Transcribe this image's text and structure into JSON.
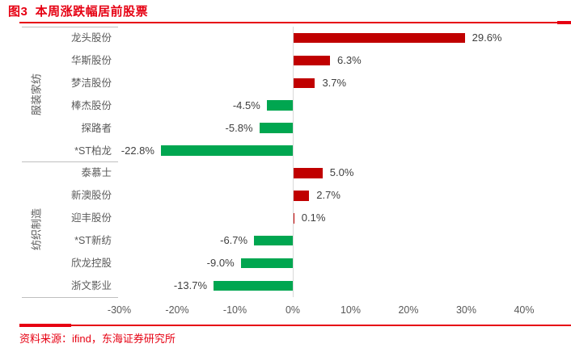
{
  "header": {
    "title": "图3  本周涨跌幅居前股票"
  },
  "footer": {
    "source": "资料来源：ifind，东海证券研究所"
  },
  "colors": {
    "accent_red": "#e60012",
    "bar_positive": "#c00000",
    "bar_negative": "#00a650",
    "axis_text": "#595959",
    "value_text": "#3f3f3f",
    "zero_axis_line": "#d9d9d9",
    "category_tick_line": "#bfbfbf"
  },
  "chart_data": {
    "type": "bar",
    "orientation": "horizontal",
    "title": "本周涨跌幅居前股票",
    "xlim": [
      -30,
      40
    ],
    "x_ticks": [
      {
        "label": "-30%",
        "value": -30
      },
      {
        "label": "-20%",
        "value": -20
      },
      {
        "label": "-10%",
        "value": -10
      },
      {
        "label": "0%",
        "value": 0
      },
      {
        "label": "10%",
        "value": 10
      },
      {
        "label": "20%",
        "value": 20
      },
      {
        "label": "30%",
        "value": 30
      },
      {
        "label": "40%",
        "value": 40
      }
    ],
    "groups": [
      {
        "name": "服装家纺",
        "stocks": [
          "龙头股份",
          "华斯股份",
          "梦洁股份",
          "棒杰股份",
          "探路者",
          "*ST柏龙"
        ],
        "values": [
          29.6,
          6.3,
          3.7,
          -4.5,
          -5.8,
          -22.8
        ],
        "value_labels": [
          "29.6%",
          "6.3%",
          "3.7%",
          "-4.5%",
          "-5.8%",
          "-22.8%"
        ]
      },
      {
        "name": "纺织制造",
        "stocks": [
          "泰慕士",
          "新澳股份",
          "迎丰股份",
          "*ST新纺",
          "欣龙控股",
          "浙文影业"
        ],
        "values": [
          5.0,
          2.7,
          0.1,
          -6.7,
          -9.0,
          -13.7
        ],
        "value_labels": [
          "5.0%",
          "2.7%",
          "0.1%",
          "-6.7%",
          "-9.0%",
          "-13.7%"
        ]
      }
    ],
    "legend": null,
    "grid": false
  }
}
